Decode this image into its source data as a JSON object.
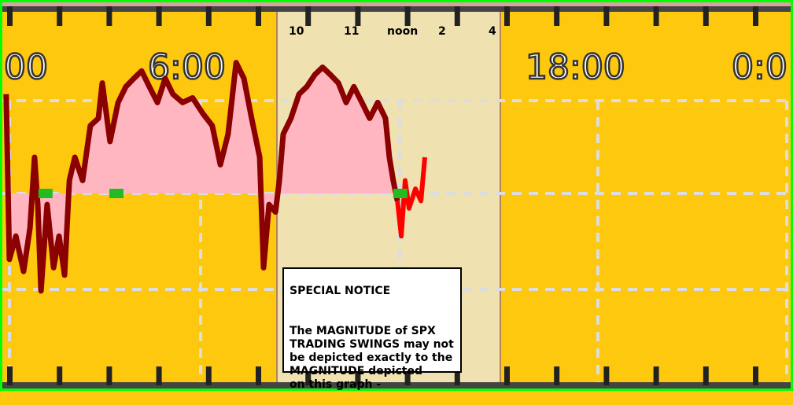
{
  "chart_data": {
    "type": "area",
    "title": "",
    "xlabel": "",
    "ylabel": "",
    "top_time_labels": [
      "00",
      "6:00",
      "18:00",
      "0:0"
    ],
    "session_hour_labels": [
      "10",
      "11",
      "noon",
      "2",
      "4"
    ],
    "grid": true,
    "baseline": 0,
    "series": [
      {
        "color": "#8b0000",
        "fill": "#ffb6c1",
        "x": [
          0.63,
          0.73,
          0.93,
          1.17,
          1.37,
          1.51,
          1.61,
          1.71,
          1.9,
          2.1,
          2.27,
          2.44,
          2.59,
          2.76,
          3.0,
          3.24,
          3.49,
          3.61,
          3.85,
          4.1,
          4.34,
          4.59,
          4.83,
          5.07,
          5.32,
          5.56,
          5.8,
          6.1,
          6.41,
          6.73,
          7.02,
          7.27,
          7.51,
          7.76,
          8.0,
          8.24,
          8.49,
          8.61,
          8.78,
          8.98,
          9.1,
          9.22,
          9.46,
          9.71,
          9.95,
          10.2,
          10.44,
          10.68,
          10.93,
          11.17,
          11.41,
          11.66,
          11.9,
          12.15,
          12.39,
          12.51,
          12.63,
          12.76
        ],
        "values": [
          1.07,
          -0.71,
          -0.46,
          -0.84,
          -0.37,
          0.39,
          -0.12,
          -1.05,
          -0.12,
          -0.8,
          -0.46,
          -0.88,
          0.14,
          0.39,
          0.14,
          0.73,
          0.81,
          1.19,
          0.56,
          0.98,
          1.15,
          1.24,
          1.32,
          1.15,
          0.98,
          1.24,
          1.07,
          0.98,
          1.03,
          0.86,
          0.73,
          0.31,
          0.64,
          1.41,
          1.24,
          0.81,
          0.39,
          -0.8,
          -0.12,
          -0.2,
          0.14,
          0.64,
          0.81,
          1.07,
          1.15,
          1.28,
          1.36,
          1.28,
          1.19,
          0.98,
          1.15,
          0.98,
          0.81,
          0.98,
          0.81,
          0.39,
          0.14,
          -0.08
        ]
      },
      {
        "color": "#ff0000",
        "x": [
          12.76,
          12.88,
          13.0,
          13.12,
          13.32,
          13.49,
          13.61
        ],
        "values": [
          -0.08,
          -0.46,
          0.14,
          -0.16,
          0.05,
          -0.08,
          0.39
        ]
      }
    ],
    "markers": {
      "color": "#22bb22",
      "x": [
        1.85,
        4.05,
        12.85
      ],
      "values": [
        0,
        0,
        0
      ]
    },
    "colors": {
      "background": "#fec80f",
      "session_band": "#efe2b0",
      "border": "#00ff00"
    }
  },
  "notice": {
    "title": "SPECIAL NOTICE",
    "body": "The MAGNITUDE of SPX\nTRADING SWINGS may not\nbe depicted exactly to the\nMAGNITUDE depicted\non this graph -"
  }
}
